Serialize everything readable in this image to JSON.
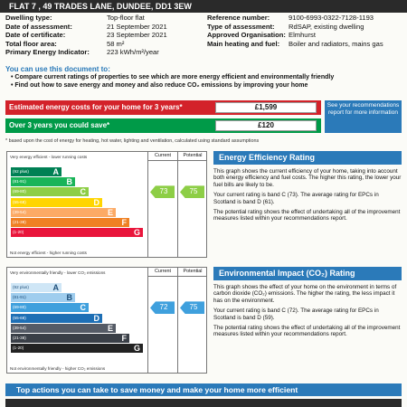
{
  "header": {
    "address": "FLAT 7 , 49 TRADES LANE, DUNDEE, DD1 3EW"
  },
  "left_info": [
    {
      "key": "Dwelling type:",
      "value": "Top-floor flat"
    },
    {
      "key": "Date of assessment:",
      "value": "21 September 2021"
    },
    {
      "key": "Date of certificate:",
      "value": "23 September 2021"
    },
    {
      "key": "Total floor area:",
      "value": "58 m²"
    },
    {
      "key": "Primary Energy Indicator:",
      "value": "223 kWh/m²/year"
    }
  ],
  "right_info": [
    {
      "key": "Reference number:",
      "value": "9100-6993-0322-7128-1193"
    },
    {
      "key": "Type of assessment:",
      "value": "RdSAP, existing dwelling"
    },
    {
      "key": "Approved Organisation:",
      "value": "Elmhurst"
    },
    {
      "key": "Main heating and fuel:",
      "value": "Boiler and radiators, mains gas"
    }
  ],
  "use_doc": {
    "title": "You can use this document to:",
    "bullets": [
      "Compare current ratings of properties to see which are more energy efficient and environmentally friendly",
      "Find out how to save energy and money and also reduce CO₂ emissions by improving your home"
    ]
  },
  "costs": {
    "estimated_label": "Estimated energy costs for your home for 3 years*",
    "estimated_value": "£1,599",
    "save_label": "Over 3 years you could save*",
    "save_value": "£120",
    "see_box": "See your recommendations report for more information",
    "footnote": "* based upon the cost of energy for heating, hot water, lighting and ventilation, calculated using standard assumptions"
  },
  "colors": {
    "blue": "#2b7ab9",
    "ee_bands": [
      "#008054",
      "#19b459",
      "#8dce46",
      "#ffd500",
      "#fcaa65",
      "#ef8023",
      "#e9153b"
    ],
    "ei_bands": [
      "#cfe6f6",
      "#9fcdee",
      "#3fa0dd",
      "#1e6fb5",
      "#555b66",
      "#3a3f47",
      "#222222"
    ]
  },
  "ee_chart": {
    "top_caption": "Very energy efficient - lower running costs",
    "bottom_caption": "Not energy efficient - higher running costs",
    "current_header": "Current",
    "potential_header": "Potential",
    "bands": [
      {
        "range": "(92 plus)",
        "letter": "A"
      },
      {
        "range": "(81-91)",
        "letter": "B"
      },
      {
        "range": "(69-80)",
        "letter": "C"
      },
      {
        "range": "(55-68)",
        "letter": "D"
      },
      {
        "range": "(39-54)",
        "letter": "E"
      },
      {
        "range": "(21-38)",
        "letter": "F"
      },
      {
        "range": "(1-20)",
        "letter": "G"
      }
    ],
    "current": "73",
    "potential": "75",
    "current_band": 2,
    "potential_band": 2
  },
  "ei_chart": {
    "top_caption": "Very environmentally friendly - lower CO₂ emissions",
    "bottom_caption": "Not environmentally friendly - higher CO₂ emissions",
    "current_header": "Current",
    "potential_header": "Potential",
    "bands": [
      {
        "range": "(92 plus)",
        "letter": "A"
      },
      {
        "range": "(81-91)",
        "letter": "B"
      },
      {
        "range": "(69-80)",
        "letter": "C"
      },
      {
        "range": "(55-68)",
        "letter": "D"
      },
      {
        "range": "(39-54)",
        "letter": "E"
      },
      {
        "range": "(21-38)",
        "letter": "F"
      },
      {
        "range": "(1-20)",
        "letter": "G"
      }
    ],
    "current": "72",
    "potential": "75",
    "current_band": 2,
    "potential_band": 2
  },
  "ee_panel": {
    "title": "Energy Efficiency Rating",
    "p1": "This graph shows the current efficiency of your home, taking into account both energy efficiency and fuel costs. The higher this rating, the lower your fuel bills are likely to be.",
    "p2": "Your current rating is band C (73). The average rating for EPCs in Scotland is band D (61).",
    "p3": "The potential rating shows the effect of undertaking all of the improvement measures listed within your recommendations report."
  },
  "ei_panel": {
    "title": "Environmental Impact (CO₂) Rating",
    "p1": "This graph shows the effect of your home on the environment in terms of carbon dioxide (CO₂) emissions. The higher the rating, the less impact it has on the environment.",
    "p2": "Your current rating is band C (72). The average rating for EPCs in Scotland is band D (59).",
    "p3": "The potential rating shows the effect of undertaking all of the improvement measures listed within your recommendations report."
  },
  "bottom": {
    "title": "Top actions you can take to save money and make your home more efficient"
  }
}
